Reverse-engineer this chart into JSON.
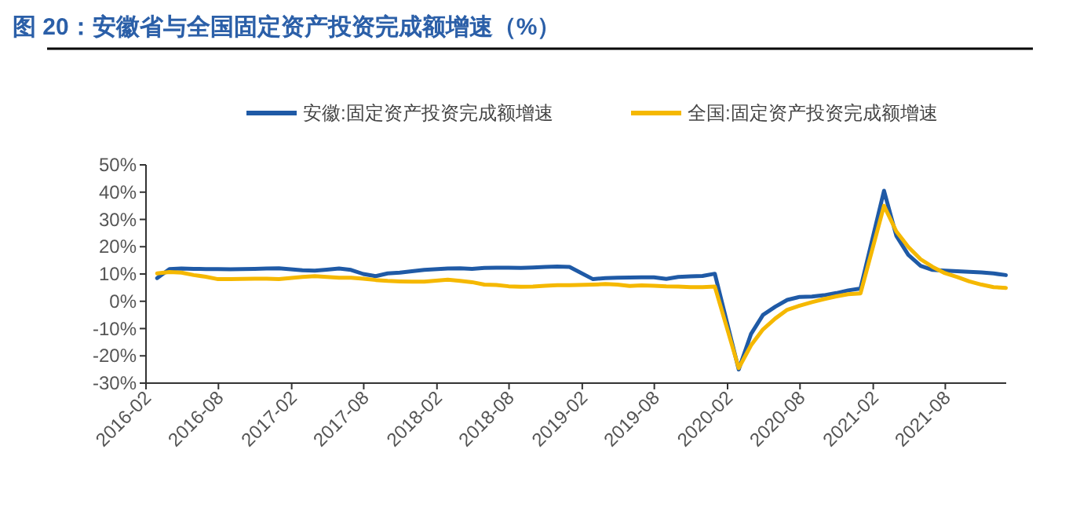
{
  "chart_data": {
    "type": "line",
    "title": "图 20：安徽省与全国固定资产投资完成额增速（%）",
    "x": [
      "2016-02-29",
      "2016-03-31",
      "2016-04-30",
      "2016-05-31",
      "2016-06-30",
      "2016-07-31",
      "2016-08-31",
      "2016-09-30",
      "2016-10-31",
      "2016-11-30",
      "2016-12-31",
      "2017-02-28",
      "2017-03-31",
      "2017-04-30",
      "2017-05-31",
      "2017-06-30",
      "2017-07-31",
      "2017-08-31",
      "2017-09-30",
      "2017-10-31",
      "2017-11-30",
      "2017-12-31",
      "2018-02-28",
      "2018-03-31",
      "2018-04-30",
      "2018-05-31",
      "2018-06-30",
      "2018-07-31",
      "2018-08-31",
      "2018-09-30",
      "2018-10-31",
      "2018-11-30",
      "2018-12-31",
      "2019-02-28",
      "2019-03-31",
      "2019-04-30",
      "2019-05-31",
      "2019-06-30",
      "2019-07-31",
      "2019-08-31",
      "2019-09-30",
      "2019-10-31",
      "2019-11-30",
      "2019-12-31",
      "2020-02-29",
      "2020-03-31",
      "2020-04-30",
      "2020-05-31",
      "2020-06-30",
      "2020-07-31",
      "2020-08-31",
      "2020-09-30",
      "2020-10-31",
      "2020-11-30",
      "2020-12-31",
      "2021-02-28",
      "2021-03-31",
      "2021-04-30",
      "2021-05-31",
      "2021-06-30",
      "2021-07-31",
      "2021-08-31",
      "2021-09-30",
      "2021-10-31",
      "2021-11-30",
      "2021-12-31"
    ],
    "series": [
      {
        "name": "安徽:固定资产投资完成额增速",
        "color": "#1f5aa6",
        "values": [
          8.5,
          11.8,
          12.0,
          11.9,
          11.8,
          11.8,
          11.7,
          11.8,
          11.9,
          12.0,
          12.1,
          11.4,
          11.2,
          11.6,
          12.0,
          11.5,
          10.0,
          9.2,
          10.2,
          10.5,
          11.0,
          11.5,
          12.0,
          12.1,
          11.9,
          12.2,
          12.3,
          12.3,
          12.2,
          12.4,
          12.6,
          12.7,
          12.6,
          8.1,
          8.5,
          8.6,
          8.7,
          8.8,
          8.8,
          8.2,
          8.9,
          9.1,
          9.3,
          10.1,
          -25.0,
          -12.0,
          -5.0,
          -2.0,
          0.5,
          1.6,
          1.7,
          2.2,
          3.0,
          4.0,
          4.7,
          40.5,
          24.0,
          17.0,
          13.0,
          11.5,
          11.2,
          11.0,
          10.8,
          10.6,
          10.2,
          9.6
        ]
      },
      {
        "name": "全国:固定资产投资完成额增速",
        "color": "#f5b800",
        "values": [
          10.2,
          10.7,
          10.5,
          9.6,
          9.0,
          8.1,
          8.1,
          8.2,
          8.3,
          8.3,
          8.1,
          8.9,
          9.2,
          8.9,
          8.6,
          8.6,
          8.3,
          7.8,
          7.5,
          7.3,
          7.2,
          7.2,
          7.9,
          7.5,
          7.0,
          6.1,
          6.0,
          5.5,
          5.3,
          5.4,
          5.7,
          5.9,
          5.9,
          6.1,
          6.3,
          6.1,
          5.6,
          5.8,
          5.7,
          5.5,
          5.4,
          5.2,
          5.2,
          5.4,
          -24.5,
          -16.1,
          -10.3,
          -6.3,
          -3.1,
          -1.6,
          -0.3,
          0.8,
          1.8,
          2.6,
          2.9,
          35.0,
          25.6,
          19.9,
          15.4,
          12.6,
          10.3,
          8.9,
          7.3,
          6.1,
          5.2,
          4.9
        ]
      }
    ],
    "xlim": [
      "2016-02-01",
      "2022-01-01"
    ],
    "xticks": [
      {
        "value": "2016-02-01",
        "label": "2016-02"
      },
      {
        "value": "2016-08-01",
        "label": "2016-08"
      },
      {
        "value": "2017-02-01",
        "label": "2017-02"
      },
      {
        "value": "2017-08-01",
        "label": "2017-08"
      },
      {
        "value": "2018-02-01",
        "label": "2018-02"
      },
      {
        "value": "2018-08-01",
        "label": "2018-08"
      },
      {
        "value": "2019-02-01",
        "label": "2019-02"
      },
      {
        "value": "2019-08-01",
        "label": "2019-08"
      },
      {
        "value": "2020-02-01",
        "label": "2020-02"
      },
      {
        "value": "2020-08-01",
        "label": "2020-08"
      },
      {
        "value": "2021-02-01",
        "label": "2021-02"
      },
      {
        "value": "2021-08-01",
        "label": "2021-08"
      }
    ],
    "ylim": [
      -30,
      50
    ],
    "yticks": [
      {
        "value": -30,
        "label": "-30%"
      },
      {
        "value": -20,
        "label": "-20%"
      },
      {
        "value": -10,
        "label": "-10%"
      },
      {
        "value": 0,
        "label": "0%"
      },
      {
        "value": 10,
        "label": "10%"
      },
      {
        "value": 20,
        "label": "20%"
      },
      {
        "value": 30,
        "label": "30%"
      },
      {
        "value": 40,
        "label": "40%"
      },
      {
        "value": 50,
        "label": "50%"
      }
    ],
    "legend": "top",
    "line_style": "solid"
  }
}
